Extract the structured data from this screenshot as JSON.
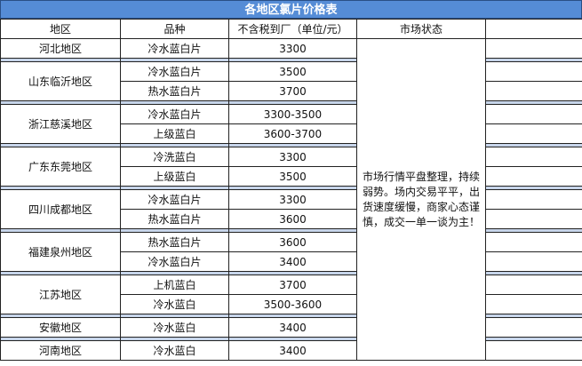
{
  "title": "各地区氯片价格表",
  "headers": [
    "地区",
    "品种",
    "不含税到厂（单位/元）",
    "市场状态",
    ""
  ],
  "market_status": "市场行情平盘整理，持续弱势。场内交易平平，出货速度缓慢，商家心态谨慎，成交一单一谈为主！",
  "colors": {
    "title_bg": "#558cd6",
    "separator": "#c7d5ea"
  },
  "regions": [
    {
      "name": "河北地区",
      "items": [
        {
          "variety": "冷水蓝白片",
          "price": "3300"
        }
      ]
    },
    {
      "name": "山东临沂地区",
      "items": [
        {
          "variety": "冷水蓝白片",
          "price": "3500"
        },
        {
          "variety": "热水蓝白片",
          "price": "3700"
        }
      ]
    },
    {
      "name": "浙江慈溪地区",
      "items": [
        {
          "variety": "冷水蓝白片",
          "price": "3300-3500"
        },
        {
          "variety": "上级蓝白",
          "price": "3600-3700"
        }
      ]
    },
    {
      "name": "广东东莞地区",
      "items": [
        {
          "variety": "冷洗蓝白",
          "price": "3300"
        },
        {
          "variety": "上级蓝白",
          "price": "3500"
        }
      ]
    },
    {
      "name": "四川成都地区",
      "items": [
        {
          "variety": "冷水蓝白片",
          "price": "3300"
        },
        {
          "variety": "热水蓝白片",
          "price": "3600"
        }
      ]
    },
    {
      "name": "福建泉州地区",
      "items": [
        {
          "variety": "热水蓝白片",
          "price": "3600"
        },
        {
          "variety": "冷水蓝白片",
          "price": "3400"
        }
      ]
    },
    {
      "name": "江苏地区",
      "items": [
        {
          "variety": "上机蓝白",
          "price": "3700"
        },
        {
          "variety": "冷水蓝白",
          "price": "3500-3600"
        }
      ]
    },
    {
      "name": "安徽地区",
      "items": [
        {
          "variety": "冷水蓝白",
          "price": "3400"
        }
      ]
    },
    {
      "name": "河南地区",
      "items": [
        {
          "variety": "冷水蓝白",
          "price": "3400"
        }
      ]
    }
  ]
}
